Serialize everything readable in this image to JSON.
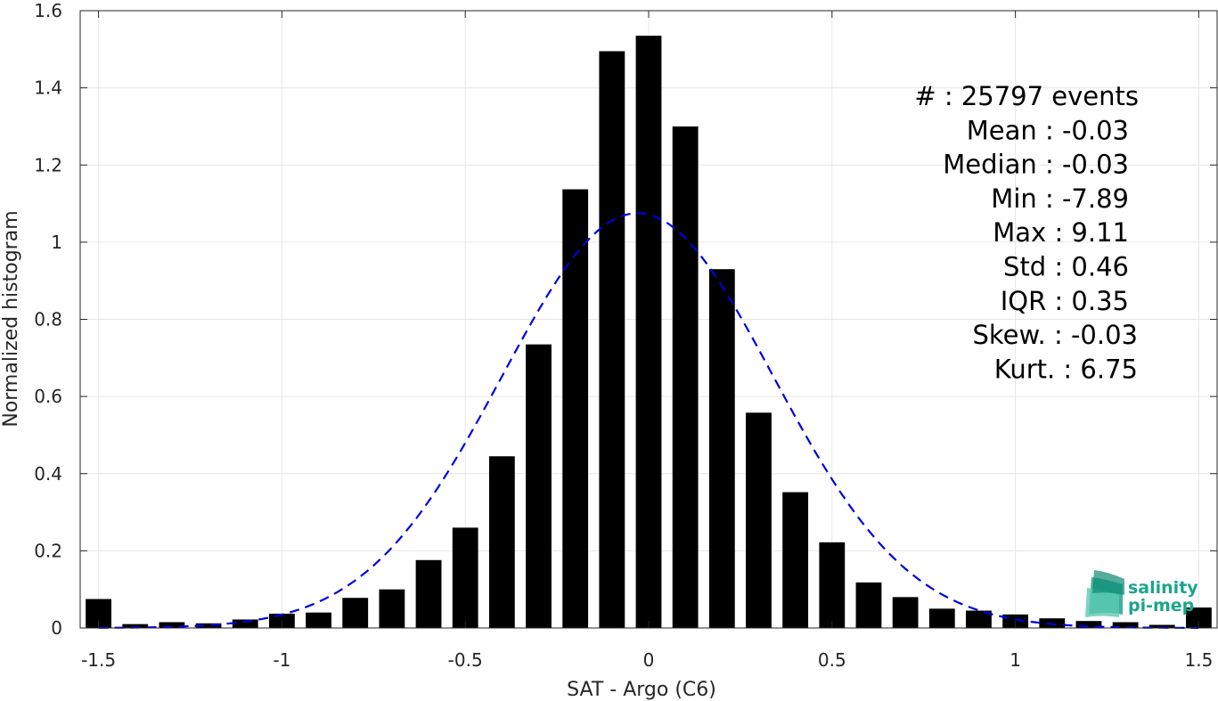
{
  "chart_data": {
    "type": "bar",
    "xlabel": "SAT - Argo (C6)",
    "ylabel": "Normalized histogram",
    "xlim": [
      -1.55,
      1.55
    ],
    "ylim": [
      0,
      1.6
    ],
    "grid": true,
    "x_ticks": [
      "-1.5",
      "-1",
      "-0.5",
      "0",
      "0.5",
      "1",
      "1.5"
    ],
    "y_ticks": [
      "0",
      "0.2",
      "0.4",
      "0.6",
      "0.8",
      "1",
      "1.2",
      "1.4",
      "1.6"
    ],
    "bin_width": 0.1,
    "x": [
      -1.5,
      -1.4,
      -1.3,
      -1.2,
      -1.1,
      -1.0,
      -0.9,
      -0.8,
      -0.7,
      -0.6,
      -0.5,
      -0.4,
      -0.3,
      -0.2,
      -0.1,
      0.0,
      0.1,
      0.2,
      0.3,
      0.4,
      0.5,
      0.6,
      0.7,
      0.8,
      0.9,
      1.0,
      1.1,
      1.2,
      1.3,
      1.4,
      1.5
    ],
    "values": [
      0.075,
      0.01,
      0.015,
      0.012,
      0.022,
      0.037,
      0.04,
      0.078,
      0.1,
      0.176,
      0.26,
      0.445,
      0.735,
      1.137,
      1.495,
      1.535,
      1.3,
      0.93,
      0.558,
      0.352,
      0.222,
      0.118,
      0.08,
      0.05,
      0.045,
      0.035,
      0.025,
      0.018,
      0.015,
      0.008,
      0.053
    ],
    "bar_color": "#000000",
    "fit_curve": {
      "style": "dashed",
      "color": "#0000dd",
      "mean": -0.03,
      "std": 0.37,
      "peak": 1.075
    },
    "annotations": [
      "#  : 25797 events",
      "Mean : -0.03",
      "Median : -0.03",
      "Min : -7.89",
      "Max : 9.11",
      "Std : 0.46",
      "IQR : 0.35",
      "Skew. : -0.03",
      "Kurt. : 6.75"
    ]
  },
  "logo": {
    "line1": "salinity",
    "line2": "pi-mep",
    "color": "#1aa58c"
  }
}
